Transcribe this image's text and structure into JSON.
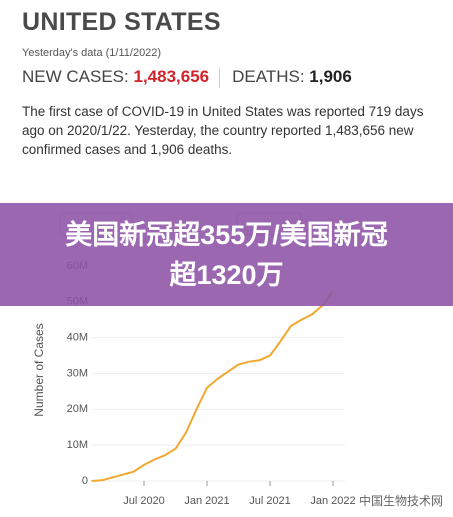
{
  "header": {
    "title": "UNITED STATES",
    "subtitle": "Yesterday's data (1/11/2022)",
    "new_cases_label": "NEW CASES:",
    "new_cases": "1,483,656",
    "deaths_label": "DEATHS:",
    "deaths": "1,906",
    "summary": "The first case of COVID-19 in United States was reported 719 days ago on 2020/1/22. Yesterday, the country reported 1,483,656 new confirmed cases and 1,906 deaths."
  },
  "banner": {
    "text": "美国新冠超355万/美国新冠超1320万"
  },
  "watermark": "中国生物技术网",
  "chart_data": {
    "type": "line",
    "y_label": "Number of Cases",
    "color": "#f0a830",
    "x": [
      "2020-02",
      "2020-03",
      "2020-04",
      "2020-05",
      "2020-06",
      "2020-07",
      "2020-08",
      "2020-09",
      "2020-10",
      "2020-11",
      "2020-12",
      "2021-01",
      "2021-02",
      "2021-03",
      "2021-04",
      "2021-05",
      "2021-06",
      "2021-07",
      "2021-08",
      "2021-09",
      "2021-10",
      "2021-11",
      "2021-12",
      "2022-01"
    ],
    "values": [
      0,
      200000,
      1000000,
      1800000,
      2600000,
      4500000,
      6000000,
      7200000,
      9000000,
      13500000,
      20000000,
      26000000,
      28500000,
      30500000,
      32500000,
      33300000,
      33700000,
      35000000,
      39000000,
      43300000,
      45000000,
      46500000,
      49000000,
      53000000
    ],
    "xticks": [
      {
        "value": "2020-07",
        "label": "Jul 2020"
      },
      {
        "value": "2021-01",
        "label": "Jan 2021"
      },
      {
        "value": "2021-07",
        "label": "Jul 2021"
      },
      {
        "value": "2022-01",
        "label": "Jan 2022"
      }
    ],
    "ylim": [
      0,
      60000000
    ],
    "yticks": [
      0,
      {
        "value": 10000000,
        "label": "10M"
      },
      {
        "value": 20000000,
        "label": "20M"
      },
      {
        "value": 30000000,
        "label": "30M"
      },
      {
        "value": 40000000,
        "label": "40M"
      },
      {
        "value": 50000000,
        "label": "50M"
      },
      {
        "value": 60000000,
        "label": "60M"
      }
    ]
  }
}
